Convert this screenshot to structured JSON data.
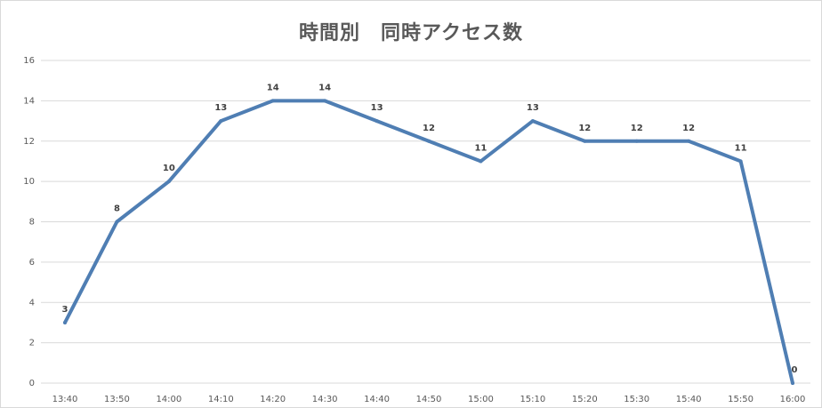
{
  "chart_data": {
    "type": "line",
    "title": "時間別　同時アクセス数",
    "xlabel": "",
    "ylabel": "",
    "categories": [
      "13:40",
      "13:50",
      "14:00",
      "14:10",
      "14:20",
      "14:30",
      "14:40",
      "14:50",
      "15:00",
      "15:10",
      "15:20",
      "15:30",
      "15:40",
      "15:50",
      "16:00"
    ],
    "series": [
      {
        "values": [
          3,
          8,
          10,
          13,
          14,
          14,
          13,
          12,
          11,
          13,
          12,
          12,
          12,
          11,
          0
        ],
        "color": "#4f7eb3"
      }
    ],
    "ylim": [
      0,
      16
    ],
    "yticks": [
      0,
      2,
      4,
      6,
      8,
      10,
      12,
      14,
      16
    ],
    "grid": true,
    "legend": "none",
    "data_labels": true
  }
}
